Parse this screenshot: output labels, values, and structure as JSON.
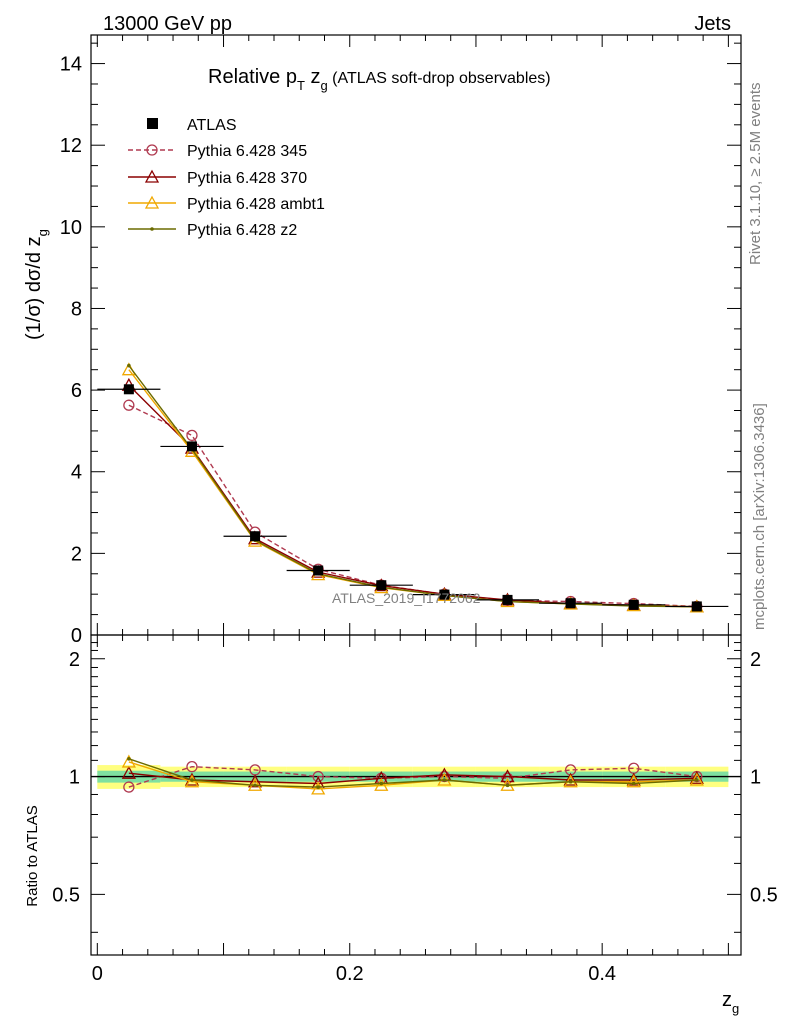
{
  "header": {
    "left": "13000 GeV pp",
    "right": "Jets"
  },
  "side_text": {
    "rivet": "Rivet 3.1.10, ≥ 2.5M events",
    "mcplots": "mcplots.cern.ch [arXiv:1306.3436]"
  },
  "watermark": "ATLAS_2019_I1772062",
  "chart_data": [
    {
      "type": "line",
      "title": "Relative pT zg (ATLAS soft-drop observables)",
      "title_parts": {
        "pre": "Relative p",
        "sub1": "T",
        "mid": " z",
        "sub2": "g",
        "post": " (ATLAS soft-drop observables)"
      },
      "xlabel": "zg",
      "xlabel_parts": {
        "main": "z",
        "sub": "g"
      },
      "ylabel": "(1/σ) dσ/d zg",
      "ylabel_parts": {
        "main": "(1/σ) dσ/d z",
        "sub": "g"
      },
      "xlim": [
        -0.005,
        0.51
      ],
      "ylim": [
        0,
        14.7
      ],
      "yticks": [
        0,
        2,
        4,
        6,
        8,
        10,
        12,
        14
      ],
      "ytick_labels": [
        "0",
        "2",
        "4",
        "6",
        "8",
        "10",
        "12",
        "14"
      ],
      "legend_position": "top-left",
      "x": [
        0.025,
        0.075,
        0.125,
        0.175,
        0.225,
        0.275,
        0.325,
        0.375,
        0.425,
        0.475
      ],
      "series": [
        {
          "name": "ATLAS",
          "style": "data",
          "color": "#000000",
          "values": [
            6.02,
            4.62,
            2.42,
            1.58,
            1.22,
            0.99,
            0.86,
            0.78,
            0.74,
            0.7
          ]
        },
        {
          "name": "Pythia 6.428 345",
          "style": "dashed-circle",
          "color": "#b03a50",
          "values": [
            5.63,
            4.89,
            2.52,
            1.61,
            1.22,
            1.0,
            0.85,
            0.82,
            0.77,
            0.7
          ]
        },
        {
          "name": "Pythia 6.428 370",
          "style": "triangle",
          "color": "#8b0000",
          "values": [
            6.12,
            4.58,
            2.36,
            1.54,
            1.21,
            1.0,
            0.86,
            0.77,
            0.73,
            0.69
          ]
        },
        {
          "name": "Pythia 6.428 ambt1",
          "style": "triangle",
          "color": "#f0a800",
          "values": [
            6.5,
            4.5,
            2.3,
            1.48,
            1.16,
            0.97,
            0.82,
            0.76,
            0.72,
            0.69
          ]
        },
        {
          "name": "Pythia 6.428 z2",
          "style": "dot",
          "color": "#6b6b00",
          "values": [
            6.6,
            4.55,
            2.32,
            1.5,
            1.17,
            0.97,
            0.82,
            0.76,
            0.71,
            0.69
          ]
        }
      ]
    },
    {
      "type": "line",
      "title": "",
      "xlabel": "zg",
      "ylabel": "Ratio to ATLAS",
      "xlim": [
        -0.005,
        0.51
      ],
      "ylim": [
        0.35,
        2.3
      ],
      "yscale": "log",
      "yticks": [
        0.5,
        1,
        2
      ],
      "ytick_labels": [
        "0.5",
        "1",
        "2"
      ],
      "xticks": [
        0,
        0.2,
        0.4
      ],
      "xtick_labels": [
        "0",
        "0.2",
        "0.4"
      ],
      "x": [
        0.025,
        0.075,
        0.125,
        0.175,
        0.225,
        0.275,
        0.325,
        0.375,
        0.425,
        0.475
      ],
      "bands": {
        "inner_color": "#7fe0a0",
        "outer_color": "#ffff80",
        "inner": [
          0.035,
          0.03,
          0.03,
          0.03,
          0.03,
          0.03,
          0.03,
          0.03,
          0.03,
          0.03
        ],
        "outer": [
          0.07,
          0.06,
          0.06,
          0.06,
          0.06,
          0.06,
          0.06,
          0.06,
          0.06,
          0.06
        ]
      },
      "series": [
        {
          "name": "Pythia 6.428 345",
          "color": "#b03a50",
          "values": [
            0.94,
            1.06,
            1.04,
            1.0,
            0.99,
            1.0,
            0.99,
            1.04,
            1.05,
            1.0
          ]
        },
        {
          "name": "Pythia 6.428 370",
          "color": "#8b0000",
          "values": [
            1.02,
            0.98,
            0.97,
            0.96,
            0.99,
            1.01,
            1.0,
            0.98,
            0.98,
            0.99
          ]
        },
        {
          "name": "Pythia 6.428 ambt1",
          "color": "#f0a800",
          "values": [
            1.09,
            0.97,
            0.95,
            0.93,
            0.95,
            0.98,
            0.95,
            0.97,
            0.97,
            0.98
          ]
        },
        {
          "name": "Pythia 6.428 z2",
          "color": "#6b6b00",
          "values": [
            1.11,
            0.98,
            0.95,
            0.94,
            0.96,
            0.98,
            0.95,
            0.97,
            0.96,
            0.98
          ]
        }
      ]
    }
  ]
}
